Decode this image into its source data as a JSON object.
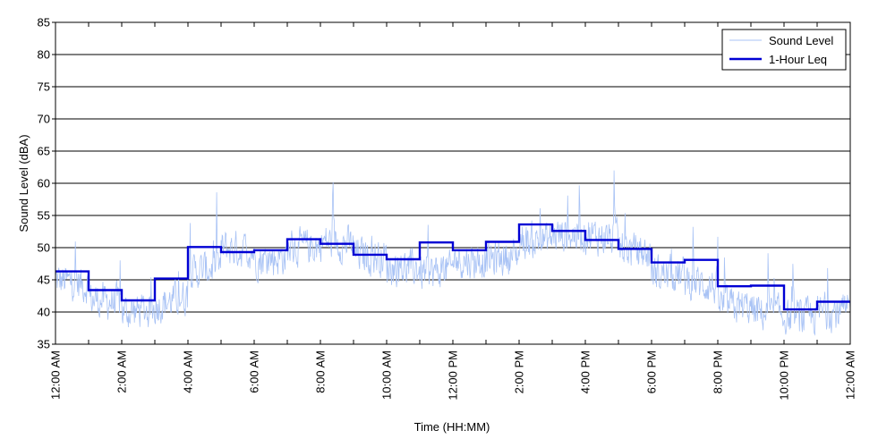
{
  "chart_data": {
    "type": "line",
    "xlabel": "Time (HH:MM)",
    "ylabel": "Sound Level (dBA)",
    "xlim": [
      0,
      24
    ],
    "ylim": [
      35,
      85
    ],
    "y_ticks": [
      35,
      40,
      45,
      50,
      55,
      60,
      65,
      70,
      75,
      80,
      85
    ],
    "x_tick_labels": [
      "12:00 AM",
      "2:00 AM",
      "4:00 AM",
      "6:00 AM",
      "8:00 AM",
      "10:00 AM",
      "12:00 PM",
      "2:00 PM",
      "4:00 PM",
      "6:00 PM",
      "8:00 PM",
      "10:00 PM",
      "12:00 AM"
    ],
    "x_ticks_major_hours": [
      0,
      2,
      4,
      6,
      8,
      10,
      12,
      14,
      16,
      18,
      20,
      22,
      24
    ],
    "grid": "horizontal",
    "legend_position": "top-right",
    "series": [
      {
        "name": "Sound Level",
        "color": "#a9c3f5",
        "style": "thin-line",
        "note_values": "hourly median levels with spiky variation",
        "hourly_levels": [
          45,
          42,
          40,
          41,
          46,
          50,
          48,
          50,
          51,
          49,
          47,
          46,
          48,
          48,
          51,
          52,
          52,
          50,
          46,
          45,
          41,
          40,
          39,
          40
        ]
      },
      {
        "name": "1-Hour Leq",
        "color": "#0000d4",
        "style": "step",
        "hours": [
          0,
          1,
          2,
          3,
          4,
          5,
          6,
          7,
          8,
          9,
          10,
          11,
          12,
          13,
          14,
          15,
          16,
          17,
          18,
          19,
          20,
          21,
          22,
          23
        ],
        "values": [
          46.3,
          43.4,
          41.8,
          45.2,
          50.1,
          49.3,
          49.6,
          51.3,
          50.6,
          48.9,
          48.2,
          50.8,
          49.6,
          50.9,
          53.6,
          52.6,
          51.2,
          49.8,
          47.7,
          48.1,
          44.0,
          44.1,
          40.4,
          41.6
        ]
      }
    ]
  }
}
